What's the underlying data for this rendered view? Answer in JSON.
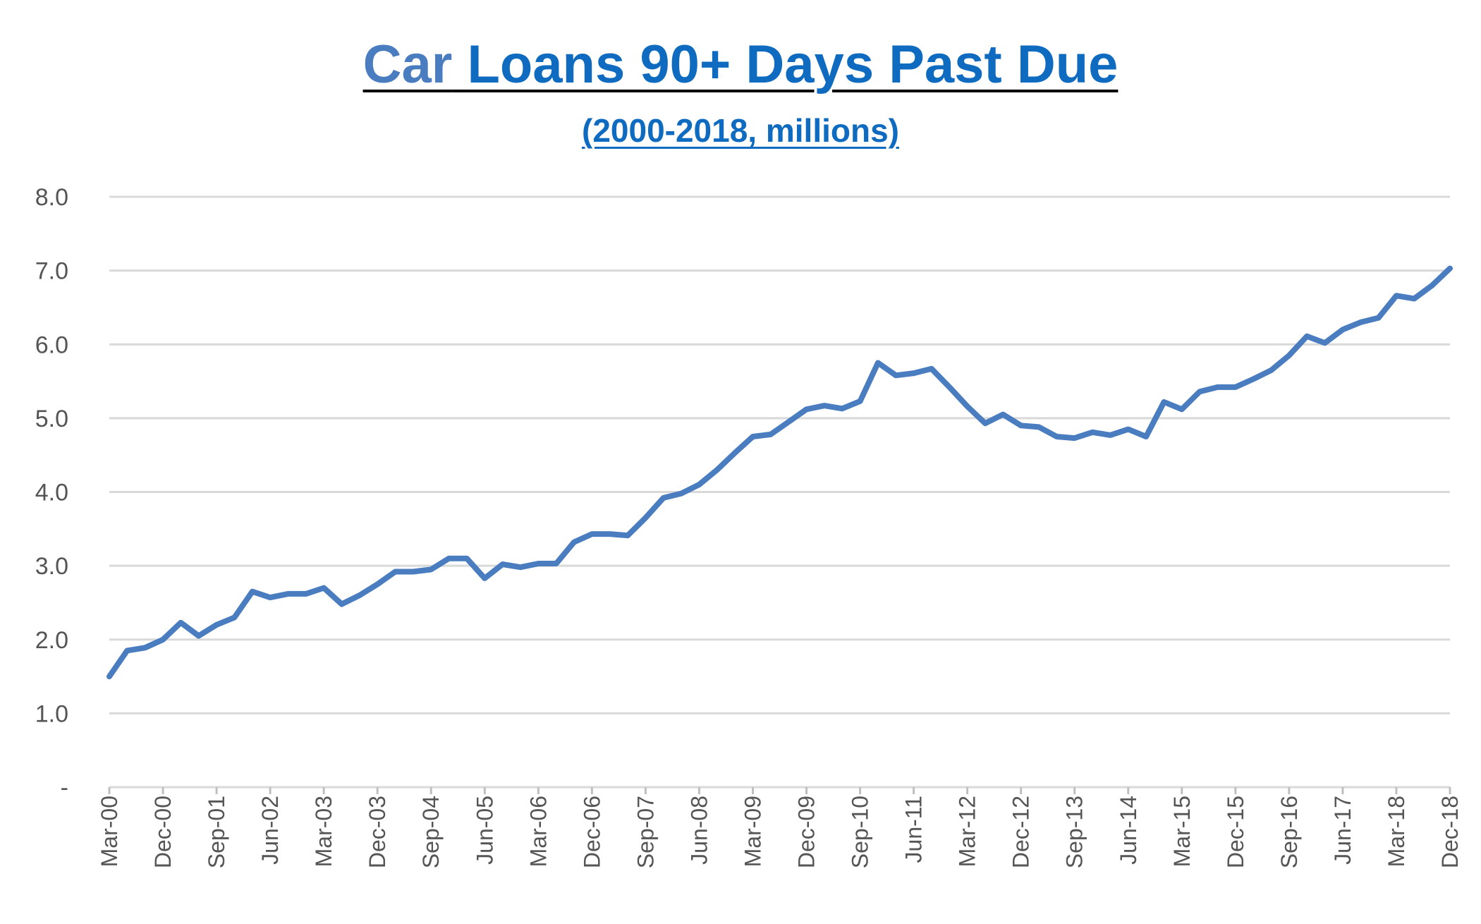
{
  "chart_data": {
    "type": "line",
    "title_word1": "Car",
    "title_rest": "Loans 90+ Days Past Due",
    "subtitle": "(2000-2018, millions)",
    "xlabel": "",
    "ylabel": "",
    "ylim": [
      0,
      8
    ],
    "y_ticks": [
      "-",
      "1.0",
      "2.0",
      "3.0",
      "4.0",
      "5.0",
      "6.0",
      "7.0",
      "8.0"
    ],
    "x_tick_labels": [
      "Mar-00",
      "Dec-00",
      "Sep-01",
      "Jun-02",
      "Mar-03",
      "Dec-03",
      "Sep-04",
      "Jun-05",
      "Mar-06",
      "Dec-06",
      "Sep-07",
      "Jun-08",
      "Mar-09",
      "Dec-09",
      "Sep-10",
      "Jun-11",
      "Mar-12",
      "Dec-12",
      "Sep-13",
      "Jun-14",
      "Mar-15",
      "Dec-15",
      "Sep-16",
      "Jun-17",
      "Mar-18",
      "Dec-18"
    ],
    "grid": true,
    "line_color": "#4a7cc0",
    "series": [
      {
        "values": [
          1.5,
          1.85,
          1.89,
          2.0,
          2.23,
          2.05,
          2.2,
          2.3,
          2.65,
          2.57,
          2.62,
          2.62,
          2.7,
          2.48,
          2.6,
          2.75,
          2.92,
          2.92,
          2.95,
          3.1,
          3.1,
          2.83,
          3.02,
          2.98,
          3.03,
          3.03,
          3.32,
          3.43,
          3.43,
          3.41,
          3.65,
          3.92,
          3.98,
          4.1,
          4.3,
          4.53,
          4.75,
          4.78,
          4.95,
          5.12,
          5.17,
          5.13,
          5.23,
          5.75,
          5.58,
          5.61,
          5.67,
          5.42,
          5.16,
          4.93,
          5.05,
          4.9,
          4.88,
          4.75,
          4.73,
          4.81,
          4.77,
          4.85,
          4.75,
          5.22,
          5.12,
          5.36,
          5.42,
          5.42,
          5.53,
          5.65,
          5.85,
          6.11,
          6.02,
          6.2,
          6.3,
          6.36,
          6.66,
          6.62,
          6.8,
          7.03
        ]
      }
    ]
  }
}
